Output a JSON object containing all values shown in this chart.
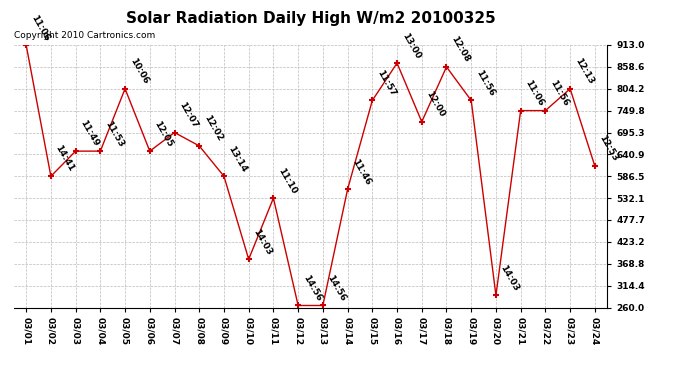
{
  "title": "Solar Radiation Daily High W/m2 20100325",
  "copyright": "Copyright 2010 Cartronics.com",
  "dates": [
    "03/01",
    "03/02",
    "03/03",
    "03/04",
    "03/05",
    "03/06",
    "03/07",
    "03/08",
    "03/09",
    "03/10",
    "03/11",
    "03/12",
    "03/13",
    "03/14",
    "03/15",
    "03/16",
    "03/17",
    "03/18",
    "03/19",
    "03/20",
    "03/21",
    "03/22",
    "03/23",
    "03/24"
  ],
  "values": [
    913.0,
    586.5,
    649.0,
    649.0,
    804.2,
    649.0,
    695.3,
    662.0,
    586.5,
    380.0,
    532.1,
    265.0,
    265.0,
    554.0,
    775.0,
    868.0,
    722.0,
    858.6,
    775.0,
    290.0,
    749.8,
    749.8,
    804.2,
    612.0
  ],
  "annotations": [
    "11:06",
    "14:41",
    "11:49",
    "11:53",
    "10:06",
    "12:05",
    "12:07",
    "12:02",
    "13:14",
    "14:03",
    "11:10",
    "14:56",
    "14:56",
    "11:46",
    "11:57",
    "13:00",
    "12:00",
    "12:08",
    "11:56",
    "14:03",
    "11:06",
    "11:56",
    "12:13",
    "12:53"
  ],
  "line_color": "#cc0000",
  "marker_color": "#cc0000",
  "background_color": "#ffffff",
  "grid_color": "#bbbbbb",
  "ylim": [
    260.0,
    913.0
  ],
  "yticks": [
    260.0,
    314.4,
    368.8,
    423.2,
    477.7,
    532.1,
    586.5,
    640.9,
    695.3,
    749.8,
    804.2,
    858.6,
    913.0
  ],
  "title_fontsize": 11,
  "annotation_fontsize": 6.5,
  "copyright_fontsize": 6.5
}
